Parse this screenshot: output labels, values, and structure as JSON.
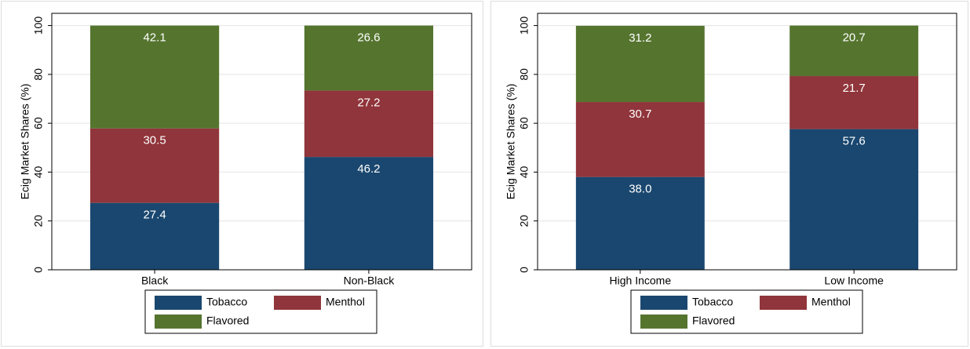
{
  "chart_data": [
    {
      "type": "stacked_bar",
      "ylabel": "Ecig Market Shares (%)",
      "categories": [
        "Black",
        "Non-Black"
      ],
      "series": [
        {
          "name": "Tobacco",
          "color": "#1a476f",
          "values": [
            27.4,
            46.2
          ],
          "value_labels": [
            "27.4",
            "46.2"
          ]
        },
        {
          "name": "Menthol",
          "color": "#90353b",
          "values": [
            30.5,
            27.2
          ],
          "value_labels": [
            "30.5",
            "27.2"
          ]
        },
        {
          "name": "Flavored",
          "color": "#55752f",
          "values": [
            42.1,
            26.6
          ],
          "value_labels": [
            "42.1",
            "26.6"
          ]
        }
      ],
      "ylim": [
        0,
        105
      ],
      "yticks": [
        0,
        20,
        40,
        60,
        80,
        100
      ],
      "grid": true
    },
    {
      "type": "stacked_bar",
      "ylabel": "Ecig Market Shares (%)",
      "categories": [
        "High Income",
        "Low Income"
      ],
      "series": [
        {
          "name": "Tobacco",
          "color": "#1a476f",
          "values": [
            38.0,
            57.6
          ],
          "value_labels": [
            "38.0",
            "57.6"
          ]
        },
        {
          "name": "Menthol",
          "color": "#90353b",
          "values": [
            30.7,
            21.7
          ],
          "value_labels": [
            "30.7",
            "21.7"
          ]
        },
        {
          "name": "Flavored",
          "color": "#55752f",
          "values": [
            31.2,
            20.7
          ],
          "value_labels": [
            "31.2",
            "20.7"
          ]
        }
      ],
      "ylim": [
        0,
        105
      ],
      "yticks": [
        0,
        20,
        40,
        60,
        80,
        100
      ],
      "grid": true
    }
  ]
}
